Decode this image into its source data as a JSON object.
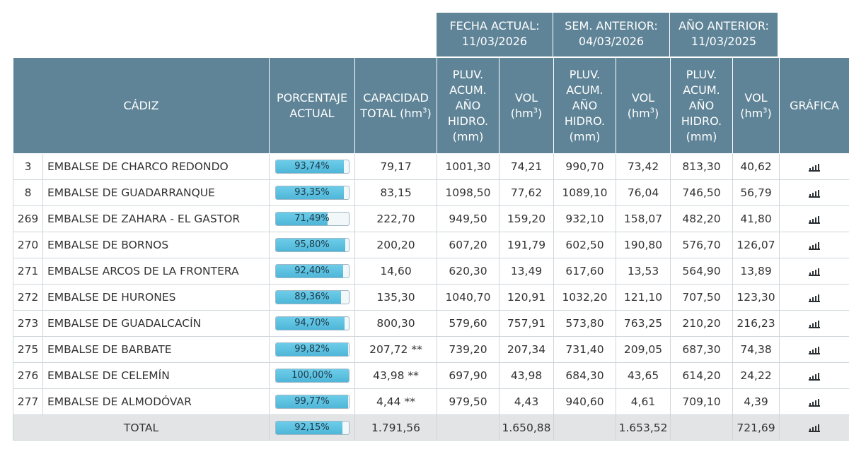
{
  "periods": [
    {
      "label": "FECHA ACTUAL:",
      "date": "11/03/2026"
    },
    {
      "label": "SEM. ANTERIOR:",
      "date": "04/03/2026"
    },
    {
      "label": "AÑO ANTERIOR:",
      "date": "11/03/2025"
    }
  ],
  "headers": {
    "province": "CÁDIZ",
    "percent_l1": "PORCENTAJE",
    "percent_l2": "ACTUAL",
    "capacity_l1": "CAPACIDAD",
    "capacity_l2": "TOTAL (hm",
    "pluv_l1": "PLUV.",
    "pluv_l2": "ACUM.",
    "pluv_l3": "AÑO",
    "pluv_l4": "HIDRO.",
    "pluv_l5": "(mm)",
    "vol_l1": "VOL",
    "vol_l2": "(hm",
    "sup3": "3",
    "close_paren": ")",
    "chart": "GRÁFICA"
  },
  "rows": [
    {
      "id": "3",
      "name": "EMBALSE DE CHARCO REDONDO",
      "percent": "93,74%",
      "pct": 93.74,
      "capacity": "79,17",
      "pluv_now": "1001,30",
      "vol_now": "74,21",
      "pluv_week": "990,70",
      "vol_week": "73,42",
      "pluv_year": "813,30",
      "vol_year": "40,62"
    },
    {
      "id": "8",
      "name": "EMBALSE DE GUADARRANQUE",
      "percent": "93,35%",
      "pct": 93.35,
      "capacity": "83,15",
      "pluv_now": "1098,50",
      "vol_now": "77,62",
      "pluv_week": "1089,10",
      "vol_week": "76,04",
      "pluv_year": "746,50",
      "vol_year": "56,79"
    },
    {
      "id": "269",
      "name": "EMBALSE DE ZAHARA - EL GASTOR",
      "percent": "71,49%",
      "pct": 71.49,
      "capacity": "222,70",
      "pluv_now": "949,50",
      "vol_now": "159,20",
      "pluv_week": "932,10",
      "vol_week": "158,07",
      "pluv_year": "482,20",
      "vol_year": "41,80"
    },
    {
      "id": "270",
      "name": "EMBALSE DE BORNOS",
      "percent": "95,80%",
      "pct": 95.8,
      "capacity": "200,20",
      "pluv_now": "607,20",
      "vol_now": "191,79",
      "pluv_week": "602,50",
      "vol_week": "190,80",
      "pluv_year": "576,70",
      "vol_year": "126,07"
    },
    {
      "id": "271",
      "name": "EMBALSE ARCOS DE LA FRONTERA",
      "percent": "92,40%",
      "pct": 92.4,
      "capacity": "14,60",
      "pluv_now": "620,30",
      "vol_now": "13,49",
      "pluv_week": "617,60",
      "vol_week": "13,53",
      "pluv_year": "564,90",
      "vol_year": "13,89"
    },
    {
      "id": "272",
      "name": "EMBALSE DE HURONES",
      "percent": "89,36%",
      "pct": 89.36,
      "capacity": "135,30",
      "pluv_now": "1040,70",
      "vol_now": "120,91",
      "pluv_week": "1032,20",
      "vol_week": "121,10",
      "pluv_year": "707,50",
      "vol_year": "123,30"
    },
    {
      "id": "273",
      "name": "EMBALSE DE GUADALCACÍN",
      "percent": "94,70%",
      "pct": 94.7,
      "capacity": "800,30",
      "pluv_now": "579,60",
      "vol_now": "757,91",
      "pluv_week": "573,80",
      "vol_week": "763,25",
      "pluv_year": "210,20",
      "vol_year": "216,23"
    },
    {
      "id": "275",
      "name": "EMBALSE DE BARBATE",
      "percent": "99,82%",
      "pct": 99.82,
      "capacity": "207,72 **",
      "pluv_now": "739,20",
      "vol_now": "207,34",
      "pluv_week": "731,40",
      "vol_week": "209,05",
      "pluv_year": "687,30",
      "vol_year": "74,38"
    },
    {
      "id": "276",
      "name": "EMBALSE DE CELEMÍN",
      "percent": "100,00%",
      "pct": 100.0,
      "capacity": "43,98 **",
      "pluv_now": "697,90",
      "vol_now": "43,98",
      "pluv_week": "684,30",
      "vol_week": "43,65",
      "pluv_year": "614,20",
      "vol_year": "24,22"
    },
    {
      "id": "277",
      "name": "EMBALSE DE ALMODÓVAR",
      "percent": "99,77%",
      "pct": 99.77,
      "capacity": "4,44 **",
      "pluv_now": "979,50",
      "vol_now": "4,43",
      "pluv_week": "940,60",
      "vol_week": "4,61",
      "pluv_year": "709,10",
      "vol_year": "4,39"
    }
  ],
  "total": {
    "label": "TOTAL",
    "percent": "92,15%",
    "pct": 92.15,
    "capacity": "1.791,56",
    "vol_now": "1.650,88",
    "vol_week": "1.653,52",
    "vol_year": "721,69"
  },
  "icons": {
    "chart": "bar-chart-icon"
  },
  "colors": {
    "header_bg": "#5f8497",
    "bar_fill": "#5bc0de",
    "total_bg": "#e3e4e6"
  }
}
